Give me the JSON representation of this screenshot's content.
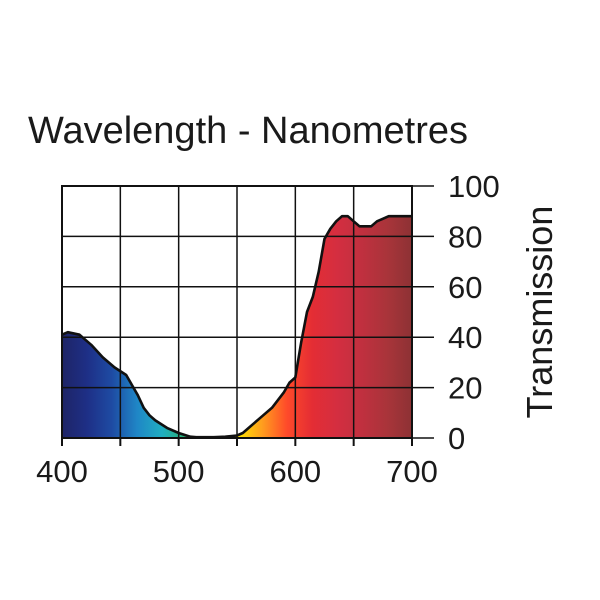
{
  "chart_data": {
    "type": "area",
    "title": "Wavelength - Nanometres",
    "xlabel": "",
    "ylabel": "Transmission",
    "xlim": [
      400,
      700
    ],
    "ylim": [
      0,
      100
    ],
    "x_ticks": [
      400,
      500,
      600,
      700
    ],
    "y_ticks": [
      0,
      20,
      40,
      60,
      80,
      100
    ],
    "x_tick_labels": [
      "400",
      "500",
      "600",
      "700"
    ],
    "y_tick_labels": [
      "0",
      "20",
      "40",
      "60",
      "80",
      "100"
    ],
    "grid": true,
    "series": [
      {
        "x": [
          400,
          405,
          415,
          425,
          435,
          445,
          455,
          460,
          465,
          470,
          475,
          480,
          490,
          500,
          510,
          515,
          520,
          530,
          540,
          550,
          555,
          560,
          570,
          580,
          590,
          595,
          600,
          605,
          610,
          615,
          620,
          625,
          630,
          635,
          640,
          645,
          650,
          655,
          660,
          665,
          670,
          675,
          680,
          690,
          700
        ],
        "values": [
          41,
          42,
          41,
          37,
          32,
          28,
          25,
          21,
          17,
          12,
          9,
          7,
          4,
          2,
          0.5,
          0.3,
          0.3,
          0.3,
          0.5,
          1,
          2,
          4,
          8,
          12,
          18,
          22,
          24,
          38,
          50,
          56,
          66,
          79,
          83,
          86,
          88,
          88,
          86,
          84,
          84,
          84,
          86,
          87,
          88,
          88,
          88
        ]
      }
    ],
    "colors": {
      "stroke": "#111111",
      "gradient": [
        "#1e2466",
        "#1e2f86",
        "#1e4ba3",
        "#1f86c6",
        "#20aec1",
        "#2ab36e",
        "#8bc840",
        "#ffe800",
        "#ff9e1e",
        "#ff4a2a",
        "#e42d34",
        "#d42e40",
        "#c0303f",
        "#a9343a",
        "#8d3234"
      ]
    }
  }
}
